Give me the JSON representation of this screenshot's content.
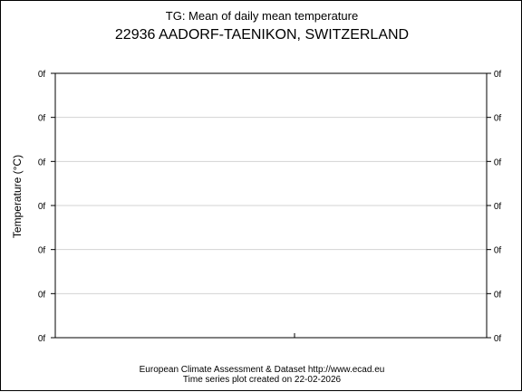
{
  "chart_data": {
    "type": "line",
    "title": "TG: Mean of daily mean temperature",
    "subtitle": "22936 AADORF-TAENIKON, SWITZERLAND",
    "ylabel": "Temperature (°C)",
    "xlabel": "",
    "y_tick_labels": [
      "0f",
      "0f",
      "0f",
      "0f",
      "0f",
      "0f",
      "0f"
    ],
    "x_tick_labels": [],
    "series": [],
    "grid": true,
    "colors": {
      "axis": "#000000",
      "grid": "#d3d3d3",
      "background": "#ffffff"
    }
  },
  "footer": {
    "line1": "European Climate Assessment & Dataset  http://www.ecad.eu",
    "line2": "Time series plot created on 22-02-2026"
  }
}
